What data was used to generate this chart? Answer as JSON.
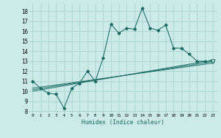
{
  "title": "",
  "xlabel": "Humidex (Indice chaleur)",
  "bg_color": "#cceae7",
  "grid_color": "#aad4d0",
  "line_color": "#1a6b65",
  "xlim": [
    -0.5,
    23.5
  ],
  "ylim": [
    7.8,
    18.7
  ],
  "ytick_values": [
    8,
    9,
    10,
    11,
    12,
    13,
    14,
    15,
    16,
    17,
    18
  ],
  "main_x": [
    0,
    1,
    2,
    3,
    4,
    5,
    6,
    7,
    8,
    9,
    10,
    11,
    12,
    13,
    14,
    15,
    16,
    17,
    18,
    19,
    20,
    21,
    22,
    23
  ],
  "main_y": [
    11.0,
    10.3,
    9.8,
    9.7,
    8.3,
    10.3,
    10.8,
    12.0,
    11.0,
    13.3,
    16.7,
    15.8,
    16.3,
    16.2,
    18.3,
    16.3,
    16.1,
    16.6,
    14.3,
    14.3,
    13.7,
    13.0,
    13.0,
    13.0
  ],
  "line1_x": [
    0,
    23
  ],
  "line1_y": [
    10.0,
    13.1
  ],
  "line2_x": [
    0,
    23
  ],
  "line2_y": [
    10.15,
    12.95
  ],
  "line3_x": [
    0,
    23
  ],
  "line3_y": [
    10.3,
    12.8
  ],
  "tri_x": 23,
  "tri_y": 13.0
}
